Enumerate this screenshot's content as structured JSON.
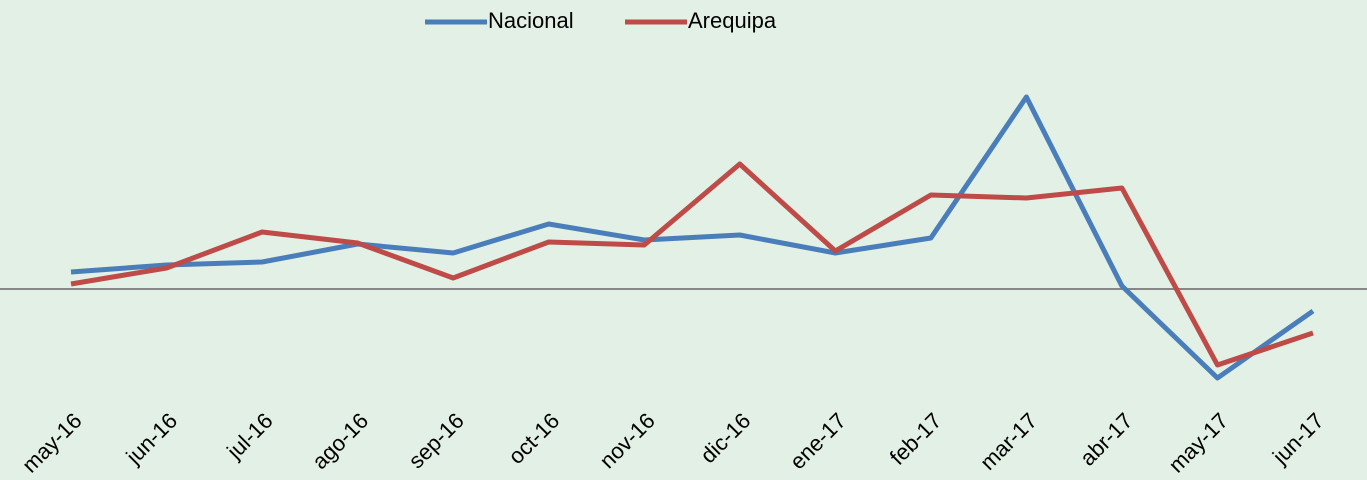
{
  "chart_data": {
    "type": "line",
    "categories": [
      "may-16",
      "jun-16",
      "jul-16",
      "ago-16",
      "sep-16",
      "oct-16",
      "nov-16",
      "dic-16",
      "ene-17",
      "feb-17",
      "mar-17",
      "abr-17",
      "may-17",
      "jun-17"
    ],
    "series": [
      {
        "name": "Nacional",
        "color": "#4a7ebb",
        "values": [
          1.7,
          2.4,
          2.7,
          4.5,
          3.6,
          6.5,
          4.9,
          5.4,
          3.6,
          5.1,
          19.2,
          0.3,
          -8.9,
          -2.2
        ]
      },
      {
        "name": "Arequipa",
        "color": "#be4b48",
        "values": [
          0.5,
          2.1,
          5.7,
          4.6,
          1.1,
          4.7,
          4.4,
          12.5,
          3.8,
          9.4,
          9.1,
          10.1,
          -7.6,
          -4.4
        ]
      }
    ],
    "ylim": [
      -11,
      23
    ],
    "legend": "top"
  }
}
